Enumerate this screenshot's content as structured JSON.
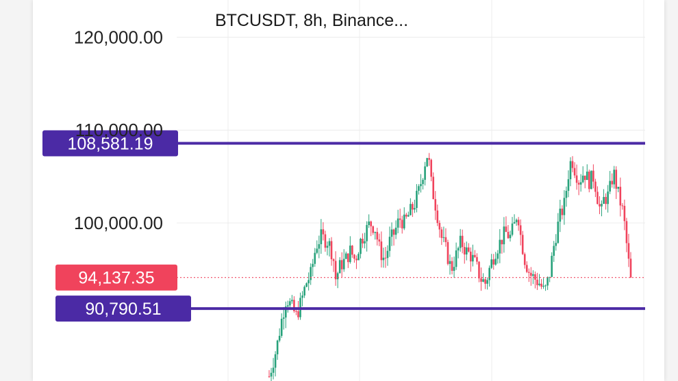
{
  "chart_data": {
    "type": "candlestick",
    "title": "BTCUSDT, 8h, Binance...",
    "y_ticks": [
      {
        "value": 120000,
        "label": "120,000.00"
      },
      {
        "value": 110000,
        "label": "110,000.00"
      },
      {
        "value": 100000,
        "label": "100,000.00"
      }
    ],
    "ylim": [
      83000,
      124000
    ],
    "levels": [
      {
        "name": "resistance",
        "value": 108581.19,
        "label": "108,581.19",
        "color": "#4b2aa5"
      },
      {
        "name": "support",
        "value": 90790.51,
        "label": "90,790.51",
        "color": "#4b2aa5"
      }
    ],
    "last_price": {
      "value": 94137.35,
      "label": "94,137.35",
      "color": "#f0435c"
    },
    "colors": {
      "up": "#26a17a",
      "down": "#f0435c",
      "grid": "#ececec"
    },
    "trend": [
      [
        0,
        83500
      ],
      [
        3,
        86500
      ],
      [
        5,
        89500
      ],
      [
        7,
        92000
      ],
      [
        9,
        91000
      ],
      [
        11,
        90000
      ],
      [
        13,
        91500
      ],
      [
        15,
        93500
      ],
      [
        17,
        94500
      ],
      [
        19,
        97500
      ],
      [
        21,
        98500
      ],
      [
        24,
        98000
      ],
      [
        26,
        96500
      ],
      [
        27,
        94000
      ],
      [
        29,
        95500
      ],
      [
        31,
        96000
      ],
      [
        33,
        97000
      ],
      [
        35,
        96000
      ],
      [
        37,
        98000
      ],
      [
        39,
        99000
      ],
      [
        41,
        100000
      ],
      [
        43,
        99500
      ],
      [
        45,
        97000
      ],
      [
        47,
        96000
      ],
      [
        49,
        98000
      ],
      [
        51,
        99000
      ],
      [
        53,
        100500
      ],
      [
        55,
        100000
      ],
      [
        57,
        101000
      ],
      [
        59,
        102000
      ],
      [
        61,
        103500
      ],
      [
        63,
        106000
      ],
      [
        64,
        107500
      ],
      [
        65,
        106500
      ],
      [
        66,
        104000
      ],
      [
        68,
        101500
      ],
      [
        70,
        98500
      ],
      [
        72,
        97000
      ],
      [
        74,
        95000
      ],
      [
        76,
        96500
      ],
      [
        78,
        98000
      ],
      [
        80,
        97000
      ],
      [
        82,
        96500
      ],
      [
        84,
        95500
      ],
      [
        86,
        94000
      ],
      [
        88,
        93500
      ],
      [
        90,
        95500
      ],
      [
        92,
        97000
      ],
      [
        94,
        98000
      ],
      [
        96,
        99000
      ],
      [
        98,
        98500
      ],
      [
        100,
        100000
      ],
      [
        101,
        101500
      ],
      [
        102,
        99000
      ],
      [
        104,
        96000
      ],
      [
        106,
        94500
      ],
      [
        108,
        94000
      ],
      [
        110,
        93500
      ],
      [
        112,
        92500
      ],
      [
        114,
        94500
      ],
      [
        116,
        98000
      ],
      [
        118,
        100500
      ],
      [
        120,
        102000
      ],
      [
        121,
        104000
      ],
      [
        122,
        106000
      ],
      [
        123,
        107000
      ],
      [
        124,
        106000
      ],
      [
        126,
        104500
      ],
      [
        128,
        105500
      ],
      [
        130,
        104500
      ],
      [
        132,
        105000
      ],
      [
        134,
        102000
      ],
      [
        135,
        101000
      ],
      [
        136,
        102500
      ],
      [
        138,
        103000
      ],
      [
        140,
        105500
      ],
      [
        142,
        103000
      ],
      [
        144,
        101000
      ],
      [
        145,
        98500
      ],
      [
        146,
        96000
      ],
      [
        147,
        94137
      ]
    ]
  }
}
